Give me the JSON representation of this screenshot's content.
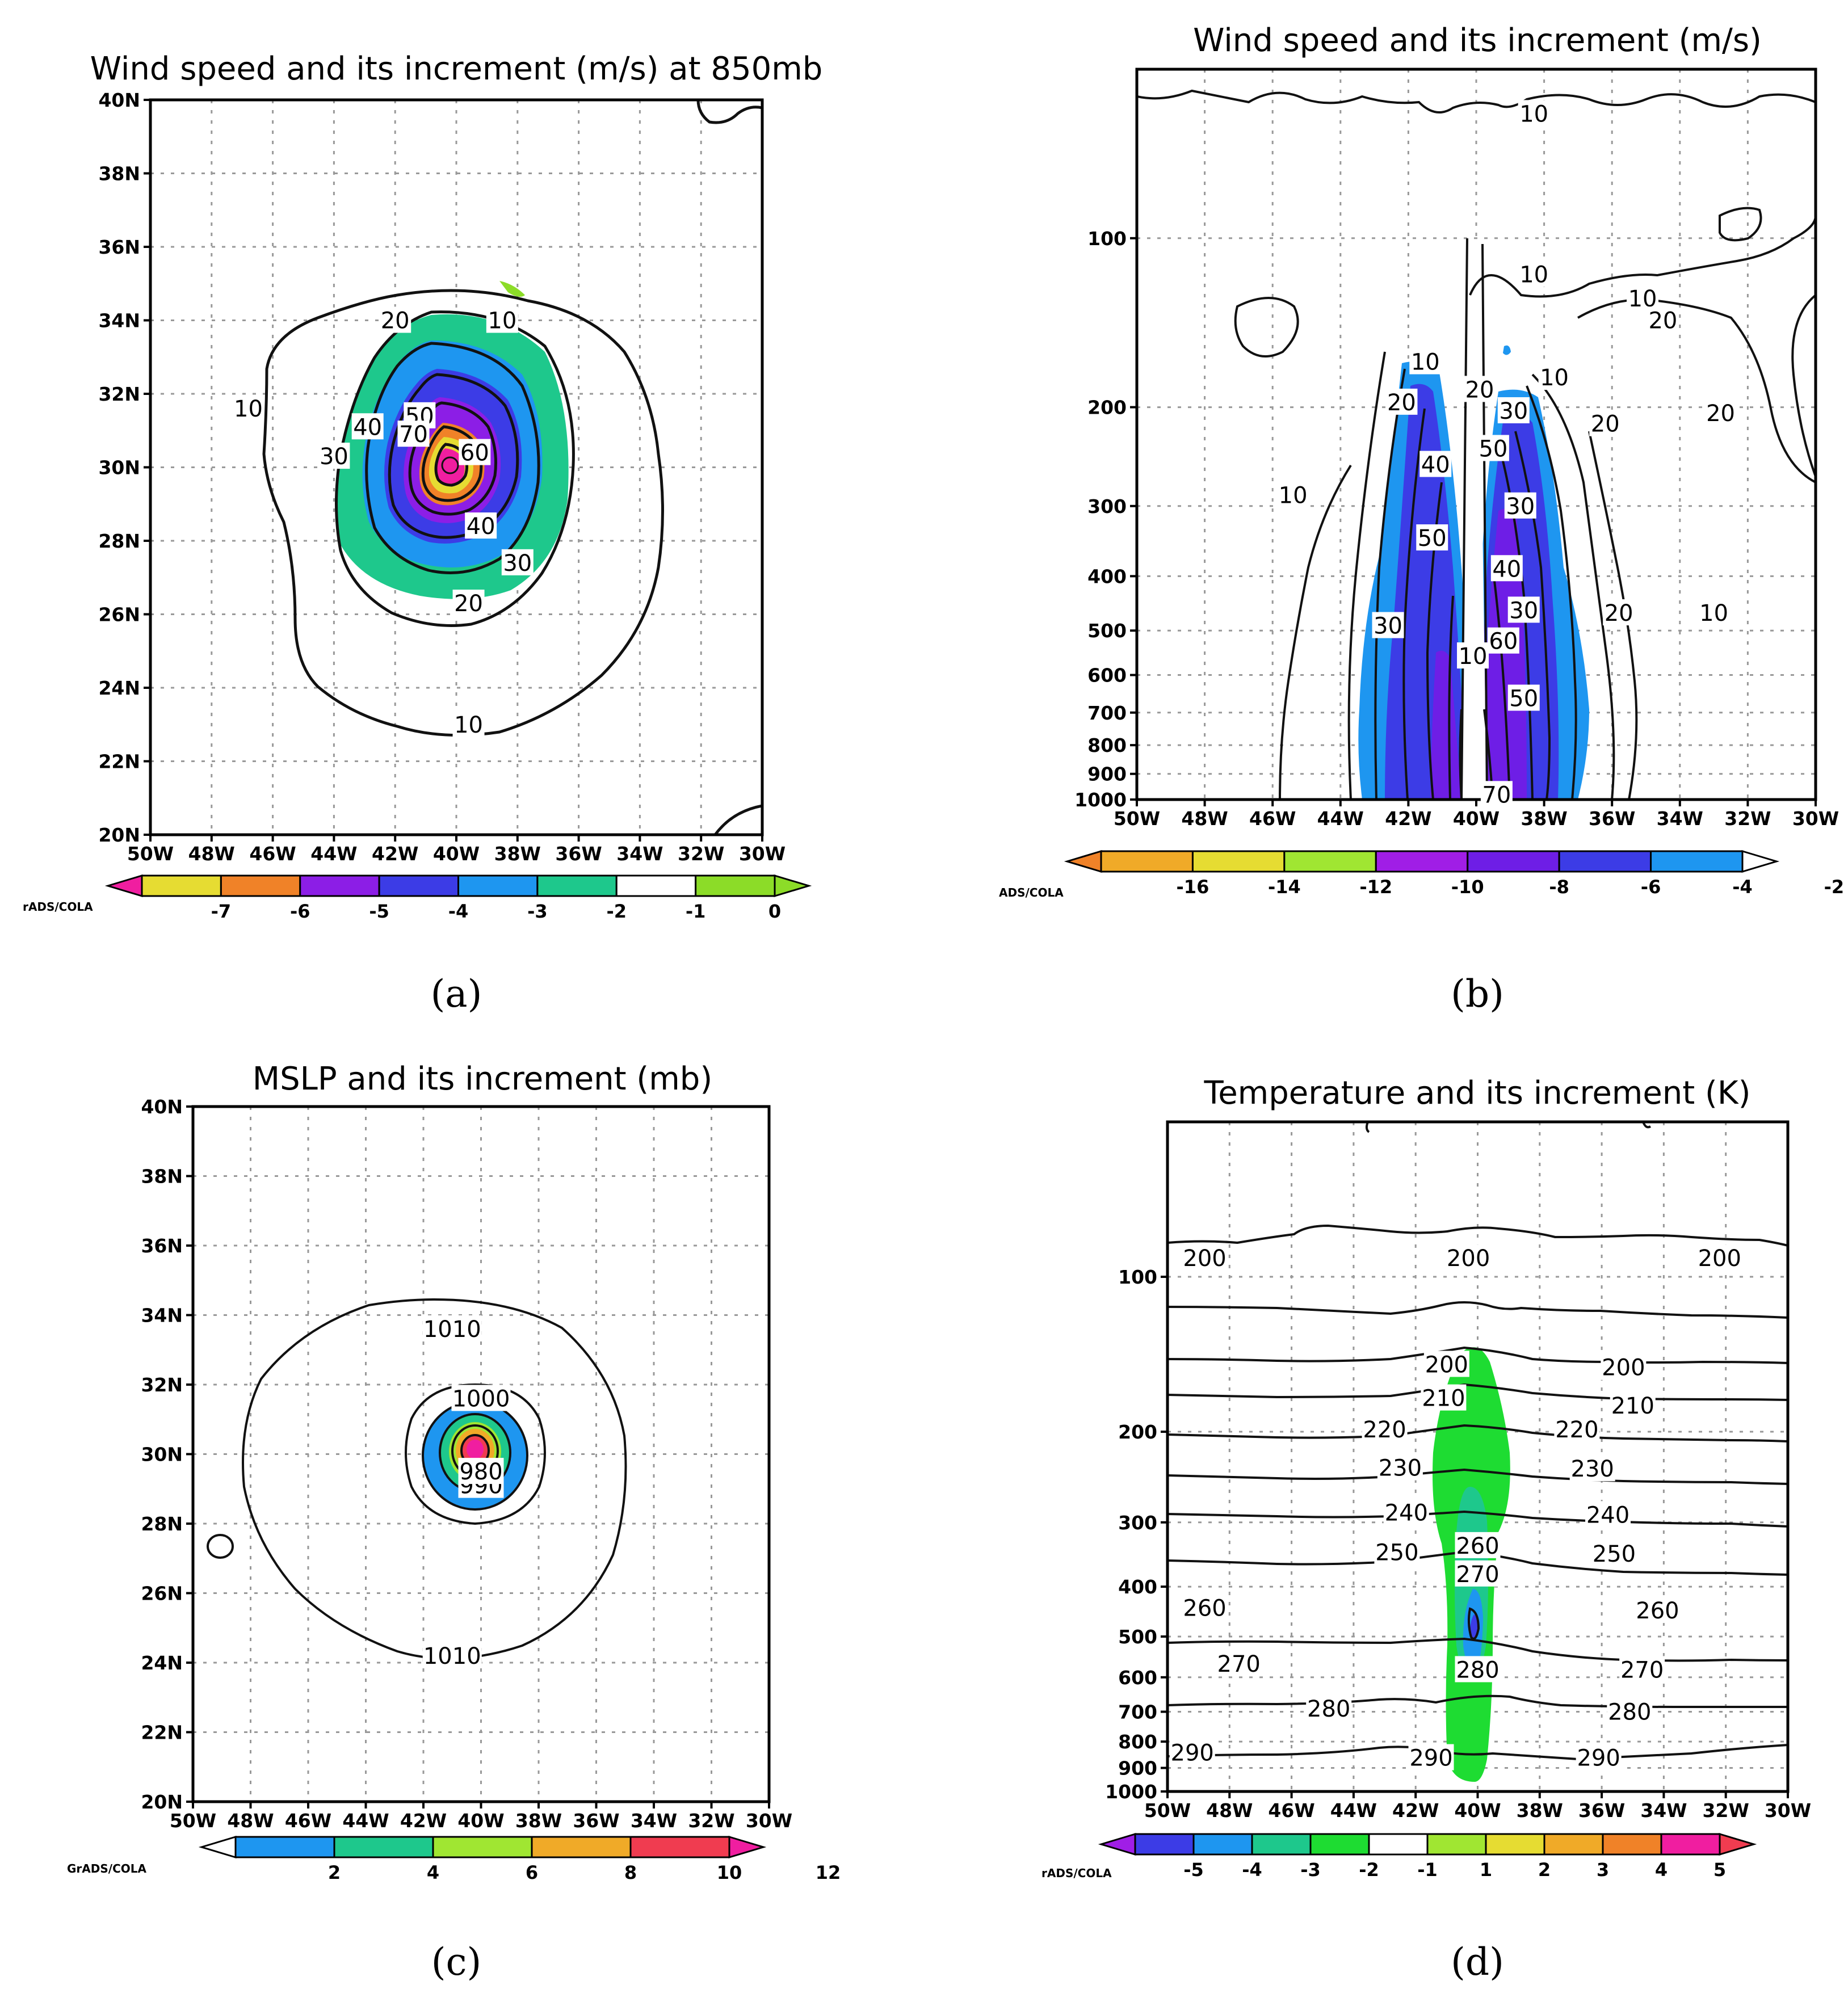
{
  "chart_data": [
    {
      "type": "contour-map",
      "panel": "a",
      "caption": "(a)",
      "title": "Wind speed and its increment (m/s) at 850mb",
      "xlim": [
        -50,
        -30
      ],
      "ylim": [
        20,
        40
      ],
      "xticks": [
        "50W",
        "48W",
        "46W",
        "44W",
        "42W",
        "40W",
        "38W",
        "36W",
        "34W",
        "32W",
        "30W"
      ],
      "yticks": [
        "20N",
        "22N",
        "24N",
        "26N",
        "28N",
        "30N",
        "32N",
        "34N",
        "36N",
        "38N",
        "40N"
      ],
      "colorbar": {
        "labels": [
          "-7",
          "-6",
          "-5",
          "-4",
          "-3",
          "-2",
          "-1",
          "0"
        ],
        "colors": [
          "#f01ea0",
          "#e6dc32",
          "#f08228",
          "#8c1ee6",
          "#3c3ce6",
          "#1e96f0",
          "#1ec88c",
          "#ffffff",
          "#8cdc28",
          "#8cdc28"
        ]
      },
      "credit": "rADS/COLA",
      "contour_labels": [
        {
          "text": "10",
          "lon": -38.5,
          "lat": 34.0
        },
        {
          "text": "10",
          "lon": -46.8,
          "lat": 31.6
        },
        {
          "text": "10",
          "lon": -39.6,
          "lat": 23.0
        },
        {
          "text": "20",
          "lon": -42.0,
          "lat": 34.0
        },
        {
          "text": "20",
          "lon": -39.6,
          "lat": 26.3
        },
        {
          "text": "30",
          "lon": -44.0,
          "lat": 30.3
        },
        {
          "text": "30",
          "lon": -38.0,
          "lat": 27.4
        },
        {
          "text": "40",
          "lon": -42.9,
          "lat": 31.1
        },
        {
          "text": "40",
          "lon": -39.2,
          "lat": 28.4
        },
        {
          "text": "50",
          "lon": -41.2,
          "lat": 31.4
        },
        {
          "text": "60",
          "lon": -39.4,
          "lat": 30.4
        },
        {
          "text": "70",
          "lon": -41.4,
          "lat": 30.9
        }
      ]
    },
    {
      "type": "contour-cross-section",
      "panel": "b",
      "caption": "(b)",
      "title": "Wind speed and its increment (m/s)",
      "xlim": [
        -50,
        -30
      ],
      "ylim": [
        1000,
        50
      ],
      "xticks": [
        "50W",
        "48W",
        "46W",
        "44W",
        "42W",
        "40W",
        "38W",
        "36W",
        "34W",
        "32W",
        "30W"
      ],
      "yticks": [
        "100",
        "200",
        "300",
        "400",
        "500",
        "600",
        "700",
        "800",
        "900",
        "1000"
      ],
      "colorbar": {
        "labels": [
          "-16",
          "-14",
          "-12",
          "-10",
          "-8",
          "-6",
          "-4",
          "-2"
        ],
        "colors": [
          "#f08228",
          "#f0aa28",
          "#e6dc32",
          "#a0e632",
          "#a01ee6",
          "#6e1ee6",
          "#3c3ce6",
          "#1e96f0",
          "#ffffff"
        ]
      },
      "credit": "ADS/COLA",
      "contour_labels": [
        {
          "text": "10",
          "lon": -38.3,
          "lat": 60
        },
        {
          "text": "10",
          "lon": -38.3,
          "lat": 116
        },
        {
          "text": "10",
          "lon": -35.1,
          "lat": 128
        },
        {
          "text": "10",
          "lon": -41.5,
          "lat": 166
        },
        {
          "text": "10",
          "lon": -37.7,
          "lat": 177
        },
        {
          "text": "10",
          "lon": -45.4,
          "lat": 287
        },
        {
          "text": "10",
          "lon": -40.1,
          "lat": 555
        },
        {
          "text": "10",
          "lon": -33.0,
          "lat": 465
        },
        {
          "text": "20",
          "lon": -34.5,
          "lat": 140
        },
        {
          "text": "20",
          "lon": -39.9,
          "lat": 186
        },
        {
          "text": "20",
          "lon": -42.2,
          "lat": 196
        },
        {
          "text": "20",
          "lon": -36.2,
          "lat": 214
        },
        {
          "text": "20",
          "lon": -32.8,
          "lat": 205
        },
        {
          "text": "20",
          "lon": -35.8,
          "lat": 465
        },
        {
          "text": "30",
          "lon": -38.9,
          "lat": 203
        },
        {
          "text": "30",
          "lon": -38.7,
          "lat": 300
        },
        {
          "text": "30",
          "lon": -38.6,
          "lat": 460
        },
        {
          "text": "30",
          "lon": -42.6,
          "lat": 490
        },
        {
          "text": "40",
          "lon": -41.2,
          "lat": 253
        },
        {
          "text": "40",
          "lon": -39.1,
          "lat": 388
        },
        {
          "text": "50",
          "lon": -41.3,
          "lat": 342
        },
        {
          "text": "50",
          "lon": -39.5,
          "lat": 237
        },
        {
          "text": "50",
          "lon": -38.6,
          "lat": 660
        },
        {
          "text": "60",
          "lon": -39.2,
          "lat": 522
        },
        {
          "text": "70",
          "lon": -39.4,
          "lat": 980
        }
      ]
    },
    {
      "type": "contour-map",
      "panel": "c",
      "caption": "(c)",
      "title": "MSLP and its increment (mb)",
      "xlim": [
        -50,
        -30
      ],
      "ylim": [
        20,
        40
      ],
      "xticks": [
        "50W",
        "48W",
        "46W",
        "44W",
        "42W",
        "40W",
        "38W",
        "36W",
        "34W",
        "32W",
        "30W"
      ],
      "yticks": [
        "20N",
        "22N",
        "24N",
        "26N",
        "28N",
        "30N",
        "32N",
        "34N",
        "36N",
        "38N",
        "40N"
      ],
      "colorbar": {
        "labels": [
          "2",
          "4",
          "6",
          "8",
          "10",
          "12"
        ],
        "colors": [
          "#ffffff",
          "#1e96f0",
          "#1ec88c",
          "#a0e632",
          "#f0aa28",
          "#f03c50",
          "#f01ea0"
        ]
      },
      "credit": "GrADS/COLA",
      "contour_labels": [
        {
          "text": "1010",
          "lon": -41.0,
          "lat": 33.6
        },
        {
          "text": "1010",
          "lon": -41.0,
          "lat": 24.2
        },
        {
          "text": "1000",
          "lon": -40.0,
          "lat": 31.6
        },
        {
          "text": "990",
          "lon": -40.0,
          "lat": 29.1
        },
        {
          "text": "980",
          "lon": -40.0,
          "lat": 29.5
        }
      ]
    },
    {
      "type": "contour-cross-section",
      "panel": "d",
      "caption": "(d)",
      "title": "Temperature and its increment (K)",
      "xlim": [
        -50,
        -30
      ],
      "ylim": [
        1000,
        50
      ],
      "xticks": [
        "50W",
        "48W",
        "46W",
        "44W",
        "42W",
        "40W",
        "38W",
        "36W",
        "34W",
        "32W",
        "30W"
      ],
      "yticks": [
        "100",
        "200",
        "300",
        "400",
        "500",
        "600",
        "700",
        "800",
        "900",
        "1000"
      ],
      "colorbar": {
        "labels": [
          "-5",
          "-4",
          "-3",
          "-2",
          "-1",
          "1",
          "2",
          "3",
          "4",
          "5"
        ],
        "colors": [
          "#a01ee6",
          "#3c3ce6",
          "#1e96f0",
          "#1ec88c",
          "#1edc32",
          "#ffffff",
          "#a0e632",
          "#e6dc32",
          "#f0aa28",
          "#f08228",
          "#f01ea0",
          "#f03c50"
        ]
      },
      "credit": "rADS/COLA",
      "contour_labels": [
        {
          "text": "200",
          "lon": -48.8,
          "lat": 92
        },
        {
          "text": "200",
          "lon": -40.3,
          "lat": 92
        },
        {
          "text": "200",
          "lon": -32.2,
          "lat": 92
        },
        {
          "text": "200",
          "lon": -41.0,
          "lat": 148
        },
        {
          "text": "200",
          "lon": -35.3,
          "lat": 150
        },
        {
          "text": "210",
          "lon": -41.1,
          "lat": 172
        },
        {
          "text": "210",
          "lon": -35.0,
          "lat": 178
        },
        {
          "text": "220",
          "lon": -43.0,
          "lat": 198
        },
        {
          "text": "220",
          "lon": -36.8,
          "lat": 198
        },
        {
          "text": "230",
          "lon": -42.5,
          "lat": 235
        },
        {
          "text": "230",
          "lon": -36.3,
          "lat": 236
        },
        {
          "text": "240",
          "lon": -42.3,
          "lat": 287
        },
        {
          "text": "240",
          "lon": -35.8,
          "lat": 290
        },
        {
          "text": "250",
          "lon": -42.6,
          "lat": 343
        },
        {
          "text": "250",
          "lon": -35.6,
          "lat": 345
        },
        {
          "text": "260",
          "lon": -40.0,
          "lat": 333
        },
        {
          "text": "260",
          "lon": -48.8,
          "lat": 440
        },
        {
          "text": "260",
          "lon": -34.2,
          "lat": 445
        },
        {
          "text": "270",
          "lon": -40.0,
          "lat": 378
        },
        {
          "text": "270",
          "lon": -47.7,
          "lat": 565
        },
        {
          "text": "270",
          "lon": -34.7,
          "lat": 580
        },
        {
          "text": "280",
          "lon": -40.0,
          "lat": 580
        },
        {
          "text": "280",
          "lon": -44.8,
          "lat": 690
        },
        {
          "text": "280",
          "lon": -35.1,
          "lat": 700
        },
        {
          "text": "290",
          "lon": -49.2,
          "lat": 840
        },
        {
          "text": "290",
          "lon": -41.5,
          "lat": 860
        },
        {
          "text": "290",
          "lon": -36.1,
          "lat": 860
        }
      ]
    }
  ]
}
